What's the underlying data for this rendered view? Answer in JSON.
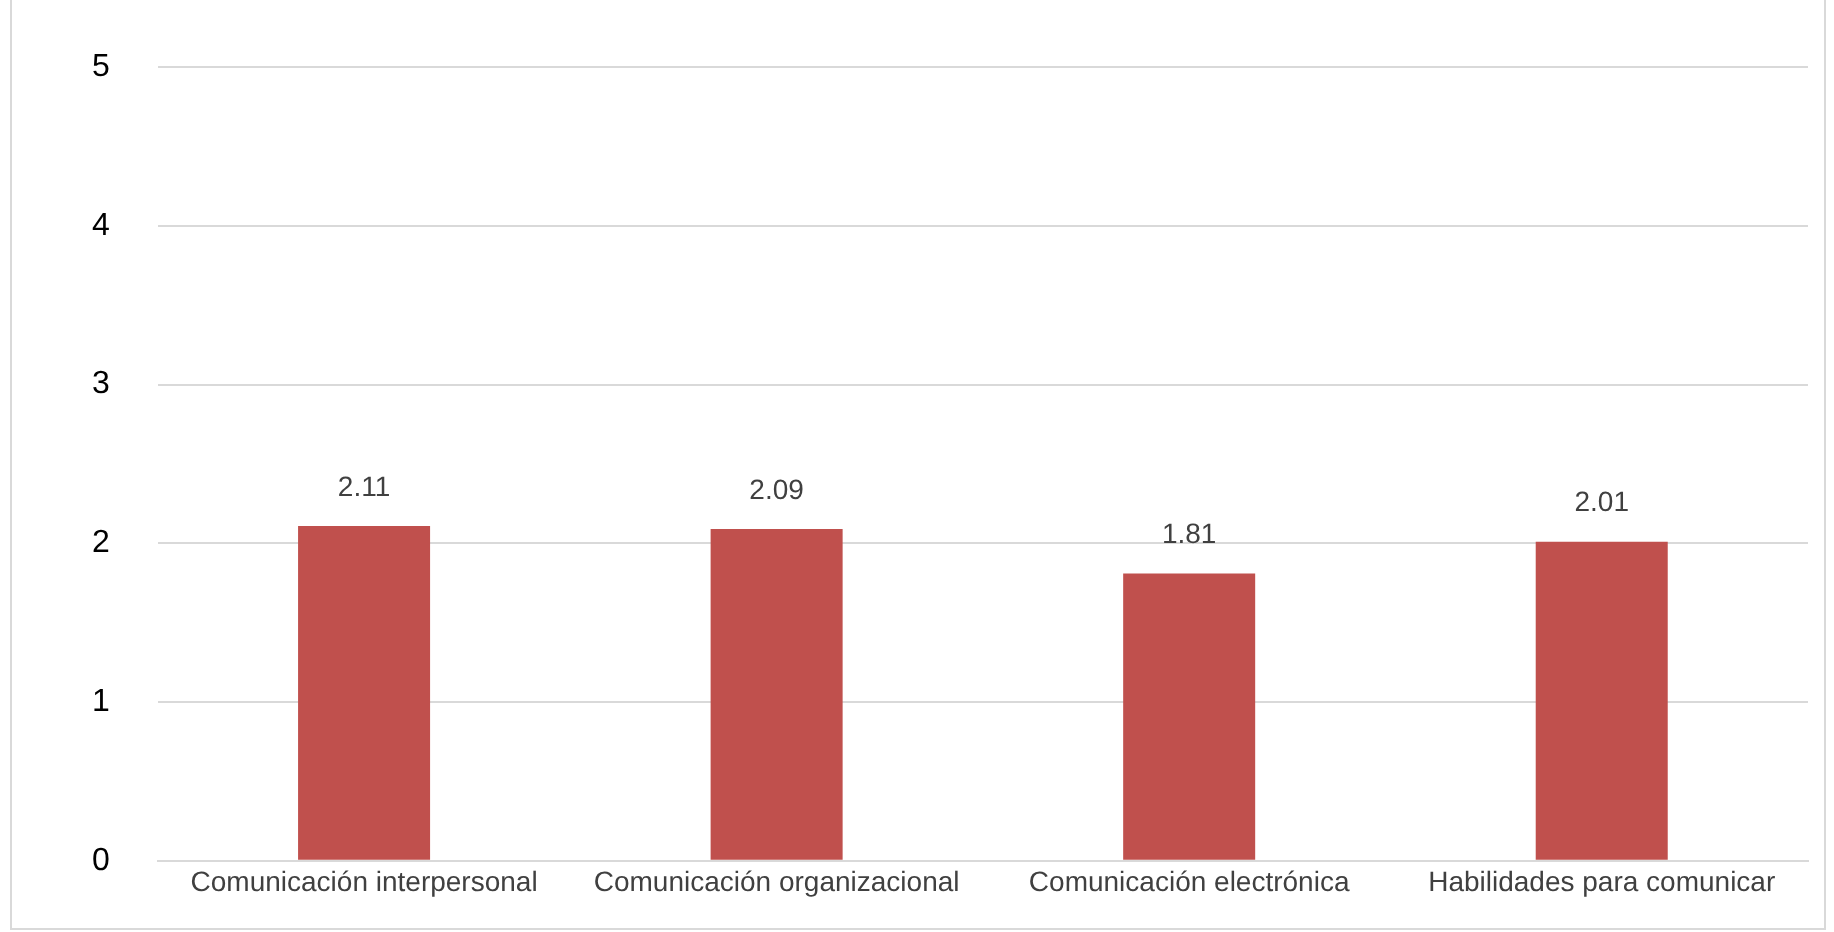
{
  "chart_data": {
    "type": "bar",
    "categories": [
      "Comunicación interpersonal",
      "Comunicación organizacional",
      "Comunicación electrónica",
      "Habilidades para comunicar"
    ],
    "values": [
      2.11,
      2.09,
      1.81,
      2.01
    ],
    "color": "#c0504d",
    "ylim": [
      0,
      5
    ],
    "yticks": [
      0,
      1,
      2,
      3,
      4,
      5
    ],
    "grid": "y",
    "data_labels": true
  }
}
